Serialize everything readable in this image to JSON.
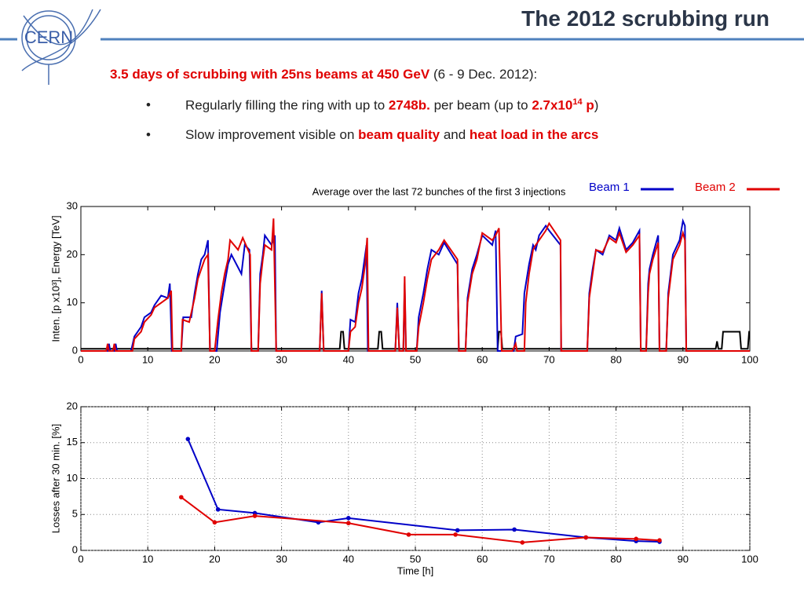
{
  "slide": {
    "logo": "CERN",
    "title": "The 2012 scrubbing run",
    "intro": [
      "3.5 days of scrubbing with 25ns beams at 450 GeV",
      "(6 - 9 Dec. 2012):"
    ],
    "bullets": [
      [
        "Regularly filling the ring with up to",
        "2748b.",
        "per beam (up to",
        "2.7x10",
        "14",
        "p",
        ")"
      ],
      [
        "Slow improvement visible on",
        "beam quality",
        "and",
        "heat load in the arcs"
      ]
    ]
  },
  "chart_data": [
    {
      "type": "line",
      "title": "Average over the last 72 bunches of the first 3 injections",
      "ylabel": "Inten. [p x10³], Energy [TeV]",
      "xlim": [
        0,
        100
      ],
      "xticks": [
        0,
        10,
        20,
        30,
        40,
        50,
        60,
        70,
        80,
        90,
        100
      ],
      "ylim": [
        0,
        30
      ],
      "yticks": [
        0,
        10,
        20,
        30
      ],
      "grid": false,
      "legend": "upper right",
      "markers": false,
      "series": [
        {
          "color": "#000000",
          "x": [
            0,
            38.7,
            38.9,
            39.2,
            39.4,
            44.4,
            44.6,
            44.9,
            45.1,
            62.3,
            62.5,
            62.8,
            63,
            94.9,
            95.1,
            95.3,
            95.8,
            96,
            98.5,
            98.7,
            99.7,
            99.9,
            100
          ],
          "values": [
            0.45,
            0.45,
            4,
            4,
            0.45,
            0.45,
            4,
            4,
            0.45,
            0.45,
            4,
            4,
            0.45,
            0.45,
            2,
            0.45,
            0.45,
            4,
            4,
            0.45,
            0.45,
            4,
            4
          ]
        },
        {
          "name": "Beam 1",
          "color": "#0000c8",
          "x": [
            0,
            4,
            4.2,
            4.4,
            5,
            5.2,
            5.4,
            7.5,
            8,
            9,
            9.5,
            10.5,
            11,
            12,
            13,
            13.3,
            13.6,
            15,
            15.3,
            16.5,
            17,
            17.5,
            18,
            18.5,
            19,
            19.3,
            20.3,
            20.8,
            21.5,
            22,
            22.5,
            24,
            24.5,
            25.2,
            25.5,
            26.5,
            26.8,
            27.2,
            27.5,
            28.5,
            29,
            29.2,
            35.7,
            36,
            36.3,
            40,
            40.3,
            41,
            41.5,
            42,
            42.5,
            42.7,
            42.9,
            47,
            47.3,
            47.6,
            48.2,
            48.4,
            48.6,
            50.2,
            50.5,
            51.2,
            51.8,
            52.4,
            53.5,
            54.3,
            56.3,
            56.5,
            57.5,
            57.8,
            58.5,
            59.2,
            60,
            61.5,
            62,
            62.3,
            64.7,
            65,
            66,
            66.3,
            67,
            67.6,
            68,
            68.5,
            69.5,
            70,
            71.7,
            71.8,
            75.7,
            76,
            76.5,
            77,
            78,
            79,
            80,
            80.5,
            81.5,
            82.5,
            83.5,
            83.7,
            84.5,
            84.8,
            85,
            85.5,
            86.3,
            86.5,
            87.5,
            87.8,
            88.5,
            89.5,
            90,
            90.3,
            90.5,
            100
          ],
          "values": [
            0,
            0,
            1.5,
            0,
            0,
            1.5,
            0,
            0,
            3,
            5,
            7,
            8,
            9.5,
            11.5,
            11,
            14,
            0,
            0,
            7,
            7,
            12,
            16,
            19,
            20,
            23,
            0,
            0,
            8,
            14,
            18,
            20,
            16,
            22,
            21,
            0,
            0,
            16,
            20,
            24,
            22,
            24,
            0,
            0,
            12.5,
            0,
            0,
            6.5,
            6,
            12,
            15,
            20,
            22,
            0,
            0,
            10,
            0,
            0,
            14,
            0,
            0,
            7,
            12,
            17,
            21,
            20,
            22.5,
            18,
            0,
            0,
            11,
            17,
            20,
            24,
            22,
            25,
            0,
            0,
            3,
            3.5,
            12,
            18,
            22,
            21,
            24,
            26,
            25,
            22,
            0,
            0,
            12,
            17,
            21,
            20,
            24,
            23,
            25.5,
            21,
            22.5,
            25,
            0,
            0,
            14,
            17,
            20,
            24,
            0,
            0,
            12,
            20,
            23,
            27,
            26,
            0,
            0
          ]
        },
        {
          "name": "Beam 2",
          "color": "#e00000",
          "x": [
            0,
            3.8,
            4,
            4.2,
            4.8,
            5,
            5.2,
            7.7,
            8,
            9,
            9.5,
            10.5,
            11,
            12,
            13,
            13.5,
            13.7,
            15,
            15.2,
            16.2,
            17,
            17.5,
            18,
            18.5,
            19,
            19.3,
            20,
            20.5,
            21,
            21.5,
            22,
            22.3,
            23.5,
            24.2,
            25.3,
            25.5,
            26.5,
            26.8,
            27.2,
            27.5,
            28.5,
            28.8,
            29.2,
            35.7,
            36,
            36.3,
            40,
            40.3,
            41,
            41.5,
            42,
            42.5,
            42.8,
            43,
            47,
            47.3,
            47.6,
            48.2,
            48.4,
            48.6,
            50.2,
            50.5,
            51.2,
            51.8,
            52.4,
            53.5,
            54.3,
            56.3,
            56.5,
            57.5,
            57.8,
            58.5,
            59.2,
            60,
            61.5,
            62,
            62.5,
            62.9,
            64.5,
            65,
            65.2,
            66.3,
            66.5,
            67,
            67.6,
            68,
            68.5,
            69.5,
            70,
            71.7,
            71.8,
            75.7,
            76,
            76.5,
            77,
            78,
            79,
            80,
            80.5,
            81.5,
            82.5,
            83.5,
            83.7,
            84.5,
            84.8,
            85,
            85.5,
            86.3,
            86.5,
            87.5,
            87.8,
            88.5,
            89.5,
            90,
            90.3,
            90.5,
            100
          ],
          "values": [
            0,
            0,
            1.5,
            0,
            0,
            1.5,
            0,
            0,
            2.5,
            4,
            6,
            7.5,
            9,
            10,
            11,
            12.5,
            0,
            0,
            6.5,
            6,
            11,
            15,
            17,
            19,
            20,
            0,
            0,
            6.5,
            12,
            16,
            19,
            23,
            21,
            23.5,
            20,
            0,
            0,
            14,
            19,
            22,
            21,
            27.5,
            0,
            0,
            12,
            0,
            0,
            4,
            5,
            10,
            13,
            18,
            23.5,
            0,
            0,
            9,
            0,
            0,
            15.5,
            0,
            0,
            5,
            10,
            15,
            19,
            21,
            23,
            19,
            0,
            0,
            10,
            16,
            19,
            24.5,
            23,
            24,
            25.5,
            0,
            0,
            1.5,
            0,
            0,
            10,
            16,
            21,
            22,
            23,
            25,
            26.5,
            23,
            0,
            0,
            11,
            16,
            21,
            20.5,
            23.5,
            22.5,
            24.5,
            20.5,
            22,
            24,
            0,
            0,
            12,
            16,
            19,
            22.5,
            0,
            0,
            11,
            19,
            22,
            24.5,
            23,
            0,
            0
          ]
        }
      ]
    },
    {
      "type": "line",
      "ylabel": "Losses after 30 min. [%]",
      "xlabel": "Time [h]",
      "xlim": [
        0,
        100
      ],
      "xticks": [
        0,
        10,
        20,
        30,
        40,
        50,
        60,
        70,
        80,
        90,
        100
      ],
      "ylim": [
        0,
        20
      ],
      "yticks": [
        0,
        5,
        10,
        15,
        20
      ],
      "grid": true,
      "markers": true,
      "series": [
        {
          "color": "#0000c8",
          "x": [
            16,
            20.5,
            26,
            35.5,
            40,
            56.3,
            64.8,
            75.5,
            83,
            86.5
          ],
          "values": [
            15.5,
            5.7,
            5.2,
            3.9,
            4.5,
            2.8,
            2.9,
            1.8,
            1.3,
            1.2
          ]
        },
        {
          "color": "#e00000",
          "x": [
            15,
            20,
            26,
            40,
            49,
            56,
            66,
            75.5,
            83,
            86.5
          ],
          "values": [
            7.4,
            3.9,
            4.8,
            3.8,
            2.2,
            2.2,
            1.1,
            1.8,
            1.6,
            1.4
          ]
        }
      ]
    }
  ]
}
